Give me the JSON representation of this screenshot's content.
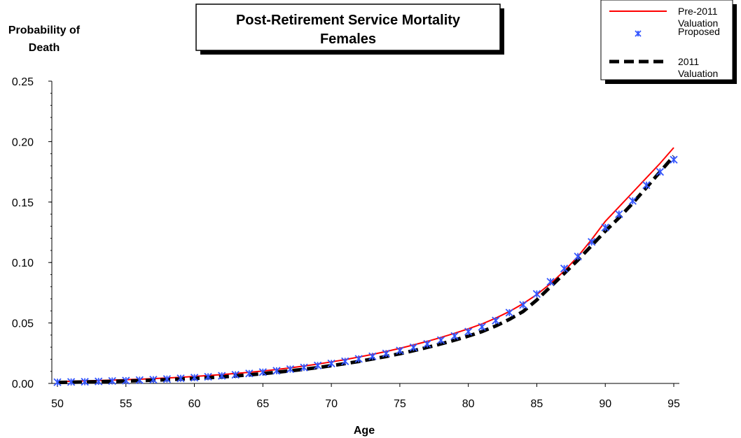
{
  "chart_data": {
    "type": "line",
    "title": [
      "Post-Retirement Service Mortality",
      "Females"
    ],
    "ylabel": [
      "Probability of",
      "Death"
    ],
    "xlabel": "Age",
    "xlim": [
      50,
      95
    ],
    "ylim": [
      0,
      0.25
    ],
    "x_ticks": [
      "50",
      "55",
      "60",
      "65",
      "70",
      "75",
      "80",
      "85",
      "90",
      "95"
    ],
    "y_ticks": [
      "0.00",
      "0.05",
      "0.10",
      "0.15",
      "0.20",
      "0.25"
    ],
    "grid": false,
    "legend_position": "top-right",
    "x": [
      50,
      51,
      52,
      53,
      54,
      55,
      56,
      57,
      58,
      59,
      60,
      61,
      62,
      63,
      64,
      65,
      66,
      67,
      68,
      69,
      70,
      71,
      72,
      73,
      74,
      75,
      76,
      77,
      78,
      79,
      80,
      81,
      82,
      83,
      84,
      85,
      86,
      87,
      88,
      89,
      90,
      91,
      92,
      93,
      94,
      95
    ],
    "series": [
      {
        "name": [
          "Pre-2011",
          "Valuation"
        ],
        "style": "solid-line",
        "color": "#ff0000",
        "values": [
          0.0015,
          0.0018,
          0.0021,
          0.0024,
          0.0027,
          0.0031,
          0.0035,
          0.004,
          0.0045,
          0.0051,
          0.0058,
          0.0065,
          0.0073,
          0.0082,
          0.0092,
          0.0103,
          0.0115,
          0.0129,
          0.0144,
          0.016,
          0.0178,
          0.0197,
          0.0218,
          0.024,
          0.0264,
          0.029,
          0.0318,
          0.0348,
          0.038,
          0.0415,
          0.0452,
          0.0492,
          0.054,
          0.0595,
          0.066,
          0.0735,
          0.0825,
          0.093,
          0.105,
          0.119,
          0.134,
          0.146,
          0.158,
          0.17,
          0.182,
          0.195
        ]
      },
      {
        "name": [
          "Proposed"
        ],
        "style": "star-markers",
        "color": "#3355ff",
        "values": [
          0.001,
          0.0012,
          0.0014,
          0.0017,
          0.002,
          0.0023,
          0.0027,
          0.0031,
          0.0036,
          0.0042,
          0.0048,
          0.0055,
          0.0063,
          0.0072,
          0.0082,
          0.0093,
          0.0105,
          0.0118,
          0.0132,
          0.0148,
          0.0165,
          0.0183,
          0.0203,
          0.0224,
          0.0247,
          0.0272,
          0.0298,
          0.0327,
          0.0358,
          0.0392,
          0.0428,
          0.0468,
          0.052,
          0.0585,
          0.065,
          0.074,
          0.084,
          0.095,
          0.105,
          0.117,
          0.129,
          0.14,
          0.151,
          0.164,
          0.175,
          0.185
        ]
      },
      {
        "name": [
          "2011",
          "Valuation"
        ],
        "style": "dashed-line",
        "color": "#000000",
        "values": [
          0.0008,
          0.001,
          0.0012,
          0.0014,
          0.0017,
          0.002,
          0.0023,
          0.0027,
          0.0031,
          0.0036,
          0.0041,
          0.0047,
          0.0054,
          0.0062,
          0.0071,
          0.0081,
          0.0092,
          0.0104,
          0.0117,
          0.0131,
          0.0147,
          0.0164,
          0.0182,
          0.0202,
          0.0223,
          0.0246,
          0.0271,
          0.0298,
          0.0327,
          0.0358,
          0.0392,
          0.0429,
          0.0475,
          0.053,
          0.0595,
          0.069,
          0.08,
          0.091,
          0.102,
          0.114,
          0.126,
          0.137,
          0.149,
          0.162,
          0.175,
          0.188
        ]
      }
    ]
  }
}
